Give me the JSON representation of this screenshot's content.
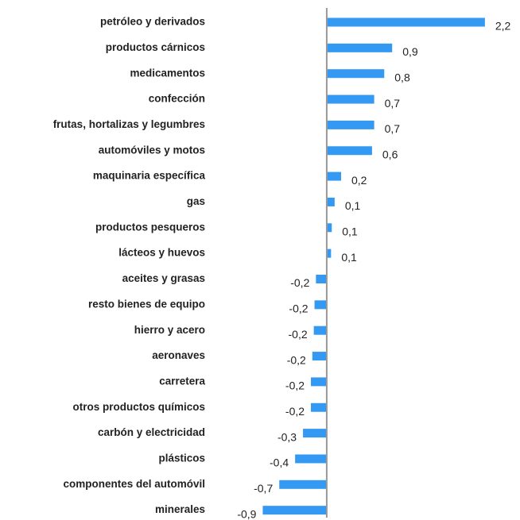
{
  "chart_data": {
    "type": "bar",
    "orientation": "horizontal",
    "color": "#3399f3",
    "categories": [
      "petróleo y derivados",
      "productos cárnicos",
      "medicamentos",
      "confección",
      "frutas, hortalizas y legumbres",
      "automóviles y motos",
      "maquinaria específica",
      "gas",
      "productos pesqueros",
      "lácteos y huevos",
      "aceites y grasas",
      "resto bienes de equipo",
      "hierro y acero",
      "aeronaves",
      "carretera",
      "otros productos químicos",
      "carbón y electricidad",
      "plásticos",
      "componentes del automóvil",
      "minerales"
    ],
    "values": [
      2.2,
      0.91,
      0.8,
      0.66,
      0.66,
      0.63,
      0.2,
      0.11,
      0.07,
      0.06,
      -0.15,
      -0.17,
      -0.18,
      -0.2,
      -0.22,
      -0.22,
      -0.33,
      -0.44,
      -0.66,
      -0.89
    ],
    "value_labels": [
      "2,2",
      "0,9",
      "0,8",
      "0,7",
      "0,7",
      "0,6",
      "0,2",
      "0,1",
      "0,1",
      "0,1",
      "-0,2",
      "-0,2",
      "-0,2",
      "-0,2",
      "-0,2",
      "-0,2",
      "-0,3",
      "-0,4",
      "-0,7",
      "-0,9"
    ],
    "xlim": [
      -1,
      2.5
    ]
  }
}
